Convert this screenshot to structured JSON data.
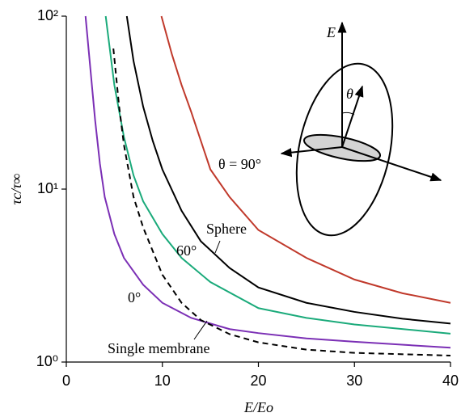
{
  "chart_data": {
    "type": "line",
    "x_label": "E/Eo",
    "y_label": "τc/τ∞",
    "xlim": [
      0,
      40
    ],
    "xticks": [
      0,
      10,
      20,
      30,
      40
    ],
    "ylim": [
      1,
      100
    ],
    "log_y": true,
    "yticks": [
      {
        "value": 1,
        "label": "10⁰"
      },
      {
        "value": 10,
        "label": "10¹"
      },
      {
        "value": 100,
        "label": "10²"
      }
    ],
    "series": [
      {
        "name": "θ = 90°",
        "color": "#c0392b",
        "dashed": false,
        "x": [
          9.9,
          11,
          12,
          13,
          15,
          17,
          20,
          25,
          30,
          35,
          40
        ],
        "values": [
          100,
          60,
          40,
          28,
          13,
          9,
          5.8,
          4.0,
          3.0,
          2.5,
          2.2
        ]
      },
      {
        "name": "Sphere",
        "color": "#000000",
        "dashed": false,
        "x": [
          6.3,
          7,
          8,
          9,
          10,
          12,
          14,
          17,
          20,
          25,
          30,
          35,
          40
        ],
        "values": [
          100,
          55,
          30,
          19,
          13,
          7.5,
          5,
          3.5,
          2.7,
          2.2,
          1.95,
          1.78,
          1.67
        ]
      },
      {
        "name": "60°",
        "color": "#1aaa7a",
        "dashed": false,
        "x": [
          4.1,
          5,
          6,
          7,
          8,
          10,
          12,
          15,
          20,
          25,
          30,
          40
        ],
        "values": [
          100,
          40,
          20,
          12,
          8.5,
          5.5,
          4,
          2.9,
          2.05,
          1.8,
          1.65,
          1.46
        ]
      },
      {
        "name": "0°",
        "color": "#7b2fb5",
        "dashed": false,
        "x": [
          2.0,
          2.5,
          3,
          3.5,
          4,
          5,
          6,
          8,
          10,
          13,
          17,
          20,
          25,
          30,
          40
        ],
        "values": [
          100,
          50,
          25,
          14,
          9,
          5.5,
          4,
          2.8,
          2.2,
          1.8,
          1.55,
          1.47,
          1.37,
          1.31,
          1.21
        ]
      },
      {
        "name": "Single membrane",
        "color": "#000000",
        "dashed": true,
        "x": [
          4.9,
          5.5,
          6,
          7,
          8,
          10,
          12,
          14,
          17,
          20,
          25,
          30,
          40
        ],
        "values": [
          65,
          30,
          18,
          9,
          6,
          3.2,
          2.2,
          1.75,
          1.45,
          1.3,
          1.18,
          1.13,
          1.09
        ]
      }
    ],
    "diagram_labels": [
      "E",
      "θ"
    ]
  }
}
